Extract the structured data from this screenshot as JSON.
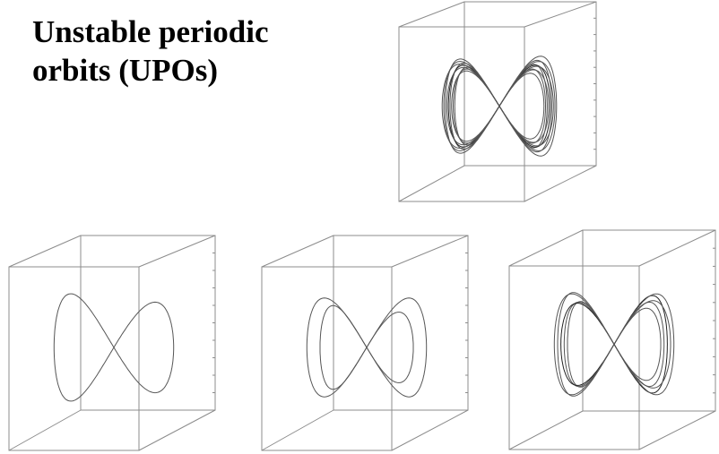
{
  "title": {
    "line1": "Unstable periodic",
    "line2": "orbits (UPOs)"
  },
  "colors": {
    "background": "#ffffff",
    "text": "#000000",
    "cube": "#8c8c8c",
    "orbit": "#555555",
    "orbit_dark": "#222222"
  },
  "panels": [
    {
      "id": "lorenz-attractor",
      "orbit_loops": 8
    },
    {
      "id": "upo-period-1",
      "orbit_loops": 1
    },
    {
      "id": "upo-period-2",
      "orbit_loops": 2
    },
    {
      "id": "upo-period-4",
      "orbit_loops": 4
    }
  ]
}
